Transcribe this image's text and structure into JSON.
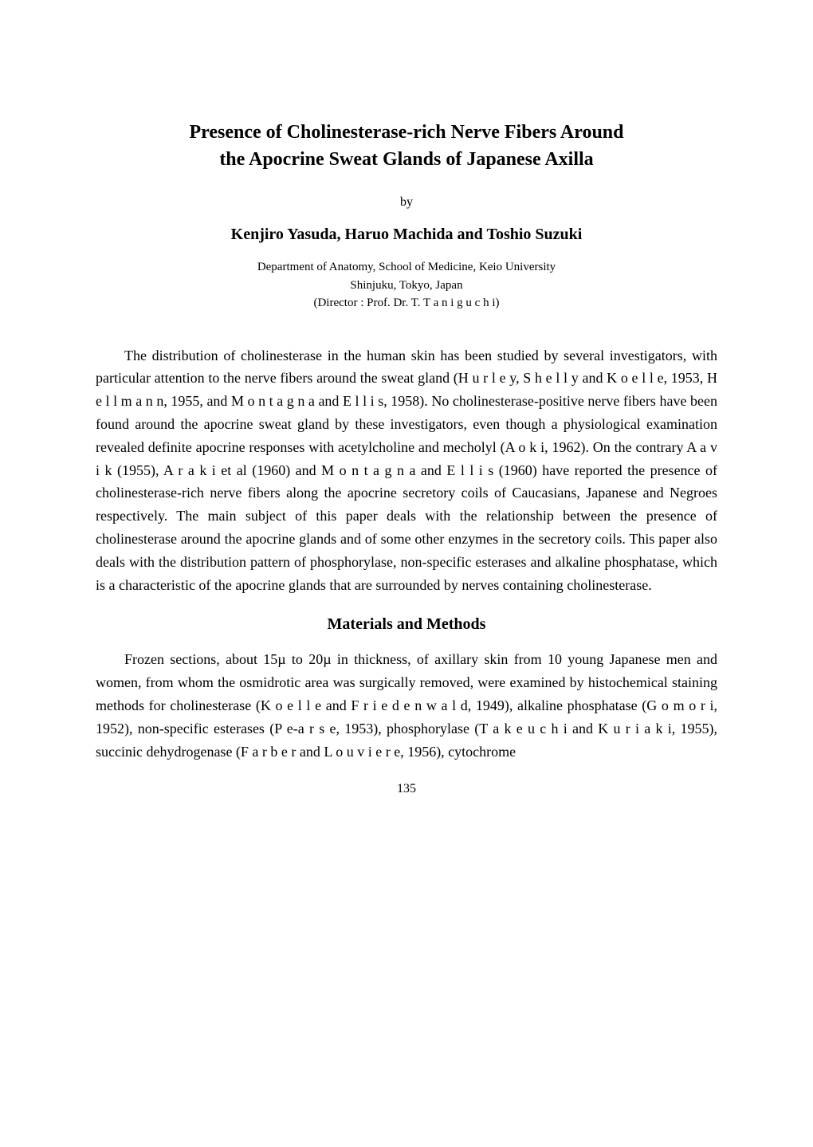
{
  "title": {
    "line1": "Presence of Cholinesterase-rich Nerve Fibers Around",
    "line2": "the Apocrine Sweat Glands of Japanese Axilla"
  },
  "byline": "by",
  "authors": "Kenjiro Yasuda, Haruo Machida and Toshio Suzuki",
  "affiliation": {
    "line1": "Department of Anatomy, School of Medicine, Keio University",
    "line2": "Shinjuku, Tokyo, Japan",
    "line3": "(Director : Prof. Dr. T. T a n i g u c h i)"
  },
  "paragraphs": {
    "p1": "The distribution of cholinesterase in the human skin has been studied by several investigators, with particular attention to the nerve fibers around the sweat gland (H u r l e y, S h e l l y and K o e l l e, 1953, H e l l m a n n, 1955, and M o n t a g n a and E l l i s, 1958). No cholinesterase-positive nerve fibers have been found around the apocrine sweat gland by these investigators, even though a physiological examination revealed definite apocrine responses with acetylcholine and mecholyl (A o k i, 1962). On the contrary A a v i k (1955), A r a k i et al (1960) and M o n t a g n a and E l l i s (1960) have reported the presence of cholinesterase-rich nerve fibers along the apocrine secretory coils of Caucasians, Japanese and Negroes respectively. The main subject of this paper deals with the relationship between the presence of cholinesterase around the apocrine glands and of some other enzymes in the secretory coils. This paper also deals with the distribution pattern of phosphorylase, non-specific esterases and alkaline phosphatase, which is a characteristic of the apocrine glands that are surrounded by nerves containing cholinesterase.",
    "p2": "Frozen sections, about 15µ to 20µ in thickness, of axillary skin from 10 young Japanese men and women, from whom the osmidrotic area was surgically removed, were examined by histochemical staining methods for cholinesterase (K o e l l e and F r i e d e n w a l d, 1949), alkaline phosphatase (G o m o r i, 1952), non-specific esterases (P e-a r s e, 1953), phosphorylase (T a k e u c h i and K u r i a k i, 1955), succinic dehydrogenase (F a r b e r and L o u v i e r e, 1956), cytochrome"
  },
  "section_heading": "Materials and Methods",
  "page_number": "135",
  "colors": {
    "text": "#000000",
    "background": "#ffffff"
  },
  "typography": {
    "title_fontsize": 24,
    "authors_fontsize": 20,
    "body_fontsize": 18,
    "affiliation_fontsize": 15,
    "section_fontsize": 20
  }
}
